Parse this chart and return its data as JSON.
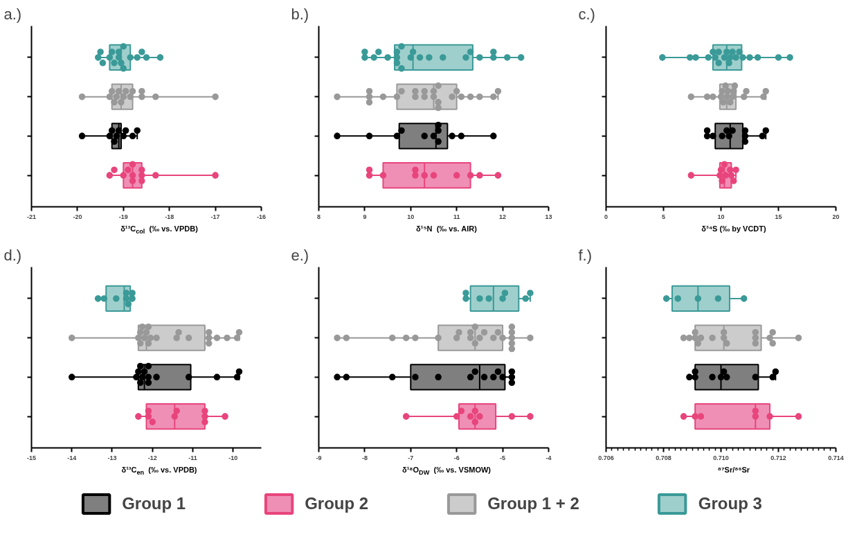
{
  "chart_data": [
    {
      "type": "box",
      "orientation": "horizontal",
      "title": "a.)",
      "xlabel": "δ¹³C$_{col}$  (‰ vs. VPDB)",
      "marker": "circle",
      "categories": [
        null,
        null,
        null,
        null
      ],
      "xlim": [
        -21,
        -16
      ],
      "xticks": [
        -21,
        -20,
        -19,
        -18,
        -17,
        -16
      ],
      "colors": [
        "#9fcfcc",
        "#cccccc",
        "#7f7f7f",
        "#ef8fb5"
      ],
      "series": [
        {
          "type": "box",
          "color": "#000000",
          "boxes": [
            null,
            null,
            {
              "low": -19.9,
              "q1": -19.25,
              "median": -19.1,
              "q3": -19.05,
              "high": -18.7,
              "outliers": [
                -19.9,
                -19.3,
                -19.25,
                -19.2,
                -19.15,
                -19.1,
                -19.0,
                -18.95,
                -18.8,
                -18.7
              ]
            },
            null
          ]
        },
        {
          "type": "box",
          "color": "#e8457c",
          "boxes": [
            null,
            null,
            null,
            {
              "low": -19.3,
              "q1": -19.0,
              "median": -18.8,
              "q3": -18.6,
              "high": -17.0,
              "outliers": [
                -19.3,
                -19.2,
                -19.0,
                -18.9,
                -18.8,
                -18.8,
                -18.8,
                -18.6,
                -18.6,
                -18.6,
                -18.3,
                -17.0
              ]
            }
          ]
        },
        {
          "type": "box",
          "color": "#999999",
          "boxes": [
            null,
            {
              "low": -19.9,
              "q1": -19.25,
              "median": -19.05,
              "q3": -18.8,
              "high": -17.0,
              "outliers": [
                -19.9,
                -19.3,
                -19.25,
                -19.2,
                -19.15,
                -19.1,
                -19.05,
                -19.0,
                -18.95,
                -18.85,
                -18.8,
                -18.6,
                -18.6,
                -18.3,
                -17.0
              ]
            },
            null,
            null
          ]
        },
        {
          "type": "box",
          "color": "#3a9a98",
          "boxes": [
            {
              "low": -19.55,
              "q1": -19.3,
              "median": -19.05,
              "q3": -18.85,
              "high": -18.2,
              "outliers": [
                -19.55,
                -19.5,
                -19.45,
                -19.3,
                -19.25,
                -19.2,
                -19.1,
                -19.1,
                -19.05,
                -19.0,
                -19.0,
                -18.85,
                -18.7,
                -18.6,
                -18.5,
                -18.2
              ]
            },
            null,
            null,
            null
          ]
        }
      ]
    },
    {
      "type": "box",
      "orientation": "horizontal",
      "title": "b.)",
      "xlabel": "δ¹⁵N  (‰ vs. AIR)",
      "marker": "circle",
      "categories": [
        null,
        null,
        null,
        null
      ],
      "xlim": [
        8,
        13
      ],
      "xticks": [
        8,
        9,
        10,
        11,
        12,
        13
      ],
      "colors": [
        "#9fcfcc",
        "#cccccc",
        "#7f7f7f",
        "#ef8fb5"
      ],
      "series": [
        {
          "type": "box",
          "color": "#000000",
          "boxes": [
            null,
            null,
            {
              "low": 8.4,
              "q1": 9.75,
              "median": 10.55,
              "q3": 10.8,
              "high": 11.8,
              "outliers": [
                8.4,
                9.1,
                9.7,
                9.8,
                10.3,
                10.5,
                10.6,
                10.6,
                10.6,
                10.9,
                11.1,
                11.8
              ]
            },
            null
          ]
        },
        {
          "type": "box",
          "color": "#e8457c",
          "boxes": [
            null,
            null,
            null,
            {
              "low": 9.1,
              "q1": 9.4,
              "median": 10.3,
              "q3": 11.3,
              "high": 11.9,
              "outliers": [
                9.1,
                9.1,
                9.4,
                10.1,
                10.1,
                10.3,
                10.5,
                11.0,
                11.3,
                11.5,
                11.9
              ]
            }
          ]
        },
        {
          "type": "box",
          "color": "#999999",
          "boxes": [
            null,
            {
              "low": 8.4,
              "q1": 9.7,
              "median": 10.5,
              "q3": 11.0,
              "high": 11.9,
              "outliers": [
                8.4,
                9.1,
                9.1,
                9.1,
                9.4,
                9.7,
                9.8,
                10.1,
                10.1,
                10.3,
                10.3,
                10.5,
                10.5,
                10.6,
                10.6,
                10.6,
                10.9,
                11.0,
                11.1,
                11.3,
                11.5,
                11.8,
                11.9
              ]
            },
            null,
            null
          ]
        },
        {
          "type": "box",
          "color": "#3a9a98",
          "boxes": [
            {
              "low": 9.0,
              "q1": 9.65,
              "median": 10.05,
              "q3": 11.35,
              "high": 12.4,
              "outliers": [
                9.0,
                9.0,
                9.2,
                9.3,
                9.5,
                9.7,
                9.7,
                9.7,
                9.8,
                9.8,
                10.0,
                10.05,
                10.2,
                10.4,
                10.7,
                11.2,
                11.3,
                11.5,
                11.8,
                11.8,
                12.1,
                12.4
              ]
            },
            null,
            null,
            null
          ]
        }
      ]
    },
    {
      "type": "box",
      "orientation": "horizontal",
      "title": "c.)",
      "xlabel": "δ³⁴S (‰ by VCDT)",
      "marker": "circle",
      "categories": [
        null,
        null,
        null,
        null
      ],
      "xlim": [
        0,
        20
      ],
      "xticks": [
        0,
        5,
        10,
        15,
        20
      ],
      "colors": [
        "#9fcfcc",
        "#cccccc",
        "#7f7f7f",
        "#ef8fb5"
      ],
      "series": [
        {
          "type": "box",
          "color": "#000000",
          "boxes": [
            null,
            null,
            {
              "low": 8.8,
              "q1": 9.5,
              "median": 10.8,
              "q3": 11.9,
              "high": 13.9,
              "outliers": [
                8.8,
                8.8,
                9.3,
                10.1,
                10.5,
                10.7,
                11.0,
                12.1,
                12.1,
                12.1,
                13.6,
                13.9
              ]
            },
            null
          ]
        },
        {
          "type": "box",
          "color": "#e8457c",
          "boxes": [
            null,
            null,
            null,
            {
              "low": 7.4,
              "q1": 9.9,
              "median": 10.3,
              "q3": 10.9,
              "high": 11.3,
              "outliers": [
                7.4,
                9.9,
                10.0,
                10.1,
                10.3,
                10.4,
                10.8,
                10.9,
                11.1,
                11.3
              ]
            }
          ]
        },
        {
          "type": "box",
          "color": "#999999",
          "boxes": [
            null,
            {
              "low": 7.4,
              "q1": 9.9,
              "median": 10.5,
              "q3": 11.3,
              "high": 13.9,
              "outliers": [
                7.4,
                8.8,
                9.3,
                10.0,
                10.1,
                10.2,
                10.4,
                10.5,
                10.6,
                10.8,
                11.0,
                11.1,
                11.2,
                12.0,
                12.2,
                13.7,
                13.9
              ]
            },
            null,
            null
          ]
        },
        {
          "type": "box",
          "color": "#3a9a98",
          "boxes": [
            {
              "low": 4.9,
              "q1": 9.3,
              "median": 10.5,
              "q3": 11.8,
              "high": 16.0,
              "outliers": [
                4.9,
                7.3,
                7.8,
                8.9,
                9.3,
                9.5,
                9.8,
                9.8,
                10.3,
                10.5,
                10.7,
                10.8,
                11.0,
                11.3,
                11.6,
                11.9,
                12.5,
                13.2,
                15.0,
                16.0
              ]
            },
            null,
            null,
            null
          ]
        }
      ]
    },
    {
      "type": "box",
      "orientation": "horizontal",
      "title": "d.)",
      "xlabel": "δ¹³C$_{en}$  (‰ vs. VPDB)",
      "marker": "circle",
      "categories": [
        null,
        null,
        null,
        null
      ],
      "xlim": [
        -15,
        -9.3
      ],
      "xticks": [
        -15,
        -14,
        -13,
        -12,
        -11,
        -10
      ],
      "colors": [
        "#9fcfcc",
        "#cccccc",
        "#7f7f7f",
        "#ef8fb5"
      ],
      "series": [
        {
          "type": "box",
          "color": "#000000",
          "boxes": [
            null,
            null,
            {
              "low": -14.0,
              "q1": -12.35,
              "median": -12.2,
              "q3": -11.05,
              "high": -9.85,
              "outliers": [
                -14.0,
                -12.4,
                -12.35,
                -12.3,
                -12.3,
                -12.25,
                -12.2,
                -12.1,
                -12.1,
                -12.1,
                -11.9,
                -11.1,
                -10.4,
                -9.9,
                -9.85
              ]
            },
            null
          ]
        },
        {
          "type": "box",
          "color": "#e8457c",
          "boxes": [
            null,
            null,
            null,
            {
              "low": -12.35,
              "q1": -12.15,
              "median": -11.45,
              "q3": -10.7,
              "high": -10.2,
              "outliers": [
                -12.35,
                -12.1,
                -12.1,
                -12.0,
                -11.45,
                -11.4,
                -10.7,
                -10.7,
                -10.7,
                -10.2
              ]
            }
          ]
        },
        {
          "type": "box",
          "color": "#999999",
          "boxes": [
            null,
            {
              "low": -14.0,
              "q1": -12.35,
              "median": -12.15,
              "q3": -10.7,
              "high": -9.85,
              "outliers": [
                -14.0,
                -12.35,
                -12.3,
                -12.3,
                -12.25,
                -12.2,
                -12.15,
                -12.1,
                -12.1,
                -12.05,
                -11.9,
                -11.4,
                -11.35,
                -11.1,
                -10.6,
                -10.6,
                -10.6,
                -10.4,
                -10.15,
                -9.9,
                -9.85
              ]
            },
            null,
            null
          ]
        },
        {
          "type": "box",
          "color": "#3a9a98",
          "boxes": [
            {
              "low": -13.35,
              "q1": -13.15,
              "median": -12.7,
              "q3": -12.55,
              "high": -12.5,
              "outliers": [
                -13.35,
                -13.2,
                -12.9,
                -12.65,
                -12.65,
                -12.6,
                -12.5,
                -12.5
              ]
            },
            null,
            null,
            null
          ]
        }
      ]
    },
    {
      "type": "box",
      "orientation": "horizontal",
      "title": "e.)",
      "xlabel": "δ¹⁸O$_{DW}$  (‰ vs. VSMOW)",
      "marker": "circle",
      "categories": [
        null,
        null,
        null,
        null
      ],
      "xlim": [
        -9,
        -4
      ],
      "xticks": [
        -9,
        -8,
        -7,
        -6,
        -5,
        -4
      ],
      "colors": [
        "#9fcfcc",
        "#cccccc",
        "#7f7f7f",
        "#ef8fb5"
      ],
      "series": [
        {
          "type": "box",
          "color": "#000000",
          "boxes": [
            null,
            null,
            {
              "low": -8.6,
              "q1": -7.0,
              "median": -5.5,
              "q3": -4.95,
              "high": -4.8,
              "outliers": [
                -8.6,
                -8.4,
                -7.4,
                -6.9,
                -6.4,
                -5.7,
                -5.6,
                -5.4,
                -5.2,
                -5.1,
                -5.0,
                -4.8,
                -4.8,
                -4.8
              ]
            },
            null
          ]
        },
        {
          "type": "box",
          "color": "#e8457c",
          "boxes": [
            null,
            null,
            null,
            {
              "low": -7.1,
              "q1": -5.95,
              "median": -5.6,
              "q3": -5.15,
              "high": -4.4,
              "outliers": [
                -7.1,
                -6.0,
                -5.9,
                -5.7,
                -5.6,
                -5.6,
                -5.5,
                -4.8,
                -4.4
              ]
            }
          ]
        },
        {
          "type": "box",
          "color": "#999999",
          "boxes": [
            null,
            {
              "low": -8.6,
              "q1": -6.4,
              "median": -5.6,
              "q3": -5.0,
              "high": -4.4,
              "outliers": [
                -8.6,
                -8.4,
                -7.4,
                -7.1,
                -6.9,
                -6.4,
                -6.0,
                -5.95,
                -5.7,
                -5.7,
                -5.6,
                -5.6,
                -5.5,
                -5.4,
                -5.2,
                -5.1,
                -5.0,
                -4.8,
                -4.8,
                -4.8,
                -4.8,
                -4.8,
                -4.4
              ]
            },
            null,
            null
          ]
        },
        {
          "type": "box",
          "color": "#3a9a98",
          "boxes": [
            {
              "low": -5.8,
              "q1": -5.7,
              "median": -5.2,
              "q3": -4.65,
              "high": -4.4,
              "outliers": [
                -5.8,
                -5.8,
                -5.5,
                -5.3,
                -5.0,
                -4.95,
                -4.5,
                -4.4
              ]
            },
            null,
            null,
            null
          ]
        }
      ]
    },
    {
      "type": "box",
      "orientation": "horizontal",
      "title": "f.)",
      "xlabel": "⁸⁷Sr/⁸⁶Sr",
      "marker": "circle",
      "legend": "bottom",
      "categories": [
        null,
        null,
        null,
        null
      ],
      "xlim": [
        0.706,
        0.714
      ],
      "xticks": [
        0.706,
        {
          "value": 0.7062,
          "label": null
        },
        {
          "value": 0.7064,
          "label": null
        },
        {
          "value": 0.7066,
          "label": null
        },
        {
          "value": 0.7068,
          "label": null
        },
        {
          "value": 0.707,
          "label": null
        },
        {
          "value": 0.7072,
          "label": null
        },
        {
          "value": 0.7074,
          "label": null
        },
        {
          "value": 0.7076,
          "label": null
        },
        {
          "value": 0.7078,
          "label": null
        },
        0.708,
        {
          "value": 0.7082,
          "label": null
        },
        {
          "value": 0.7084,
          "label": null
        },
        {
          "value": 0.7086,
          "label": null
        },
        {
          "value": 0.7088,
          "label": null
        },
        {
          "value": 0.709,
          "label": null
        },
        {
          "value": 0.7092,
          "label": null
        },
        {
          "value": 0.7094,
          "label": null
        },
        {
          "value": 0.7096,
          "label": null
        },
        {
          "value": 0.7098,
          "label": null
        },
        {
          "value": 0.71,
          "label": "0.710"
        },
        {
          "value": 0.7102,
          "label": null
        },
        {
          "value": 0.7104,
          "label": null
        },
        {
          "value": 0.7106,
          "label": null
        },
        {
          "value": 0.7108,
          "label": null
        },
        {
          "value": 0.711,
          "label": null
        },
        {
          "value": 0.7112,
          "label": null
        },
        {
          "value": 0.7114,
          "label": null
        },
        {
          "value": 0.7116,
          "label": null
        },
        {
          "value": 0.7118,
          "label": null
        },
        0.712,
        {
          "value": 0.7122,
          "label": null
        },
        {
          "value": 0.7124,
          "label": null
        },
        {
          "value": 0.7126,
          "label": null
        },
        {
          "value": 0.7128,
          "label": null
        },
        {
          "value": 0.713,
          "label": null
        },
        {
          "value": 0.7132,
          "label": null
        },
        {
          "value": 0.7134,
          "label": null
        },
        {
          "value": 0.7136,
          "label": null
        },
        {
          "value": 0.7138,
          "label": null
        },
        0.714
      ],
      "colors": [
        "#9fcfcc",
        "#cccccc",
        "#7f7f7f",
        "#ef8fb5"
      ],
      "series": [
        {
          "type": "box",
          "name": "Group 1",
          "color": "#000000",
          "boxes": [
            null,
            null,
            {
              "low": 0.7089,
              "q1": 0.7091,
              "median": 0.71,
              "q3": 0.7113,
              "high": 0.7119,
              "outliers": [
                0.7089,
                0.7091,
                0.7091,
                0.7097,
                0.71,
                0.7101,
                0.7102,
                0.7112,
                0.7118,
                0.7119
              ]
            },
            null
          ]
        },
        {
          "type": "box",
          "name": "Group 2",
          "color": "#e8457c",
          "boxes": [
            null,
            null,
            null,
            {
              "low": 0.7087,
              "q1": 0.7091,
              "median": 0.7112,
              "q3": 0.7117,
              "high": 0.7127,
              "outliers": [
                0.7087,
                0.7091,
                0.7093,
                0.7112,
                0.7112,
                0.7117,
                0.7127
              ]
            }
          ]
        },
        {
          "type": "box",
          "name": "Group 1 + 2",
          "color": "#999999",
          "boxes": [
            null,
            {
              "low": 0.7087,
              "q1": 0.7091,
              "median": 0.7101,
              "q3": 0.7114,
              "high": 0.7127,
              "outliers": [
                0.7087,
                0.7089,
                0.7091,
                0.7091,
                0.7092,
                0.7093,
                0.7097,
                0.7101,
                0.7101,
                0.7102,
                0.7112,
                0.7112,
                0.7112,
                0.7117,
                0.7118,
                0.7118,
                0.7127
              ]
            },
            null,
            null
          ]
        },
        {
          "type": "box",
          "name": "Group 3",
          "color": "#3a9a98",
          "boxes": [
            {
              "low": 0.7081,
              "q1": 0.7083,
              "median": 0.7092,
              "q3": 0.7103,
              "high": 0.7108,
              "outliers": [
                0.7081,
                0.7085,
                0.7092,
                0.7099,
                0.7108
              ]
            },
            null,
            null,
            null
          ]
        }
      ]
    }
  ]
}
